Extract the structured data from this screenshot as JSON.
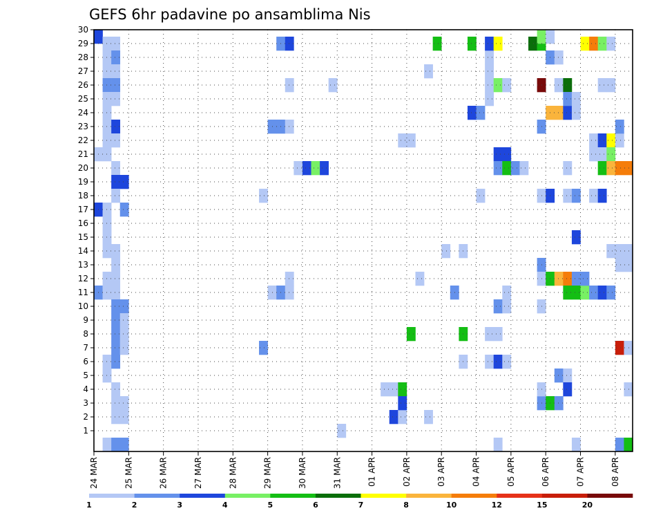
{
  "chart_data": {
    "type": "heatmap",
    "title": "GEFS 6hr padavine po ansamblima Nis",
    "xlabel": "",
    "ylabel": "",
    "y_ticks": [
      "1",
      "2",
      "3",
      "4",
      "5",
      "6",
      "7",
      "8",
      "9",
      "10",
      "11",
      "12",
      "13",
      "14",
      "15",
      "16",
      "17",
      "18",
      "19",
      "20",
      "21",
      "22",
      "23",
      "24",
      "25",
      "26",
      "27",
      "28",
      "29",
      "30"
    ],
    "x_ticks": [
      "24 MAR",
      "25 MAR",
      "26 MAR",
      "27 MAR",
      "28 MAR",
      "29 MAR",
      "30 MAR",
      "31 MAR",
      "01 APR",
      "02 APR",
      "03 APR",
      "04 APR",
      "05 APR",
      "06 APR",
      "07 APR",
      "08 APR"
    ],
    "x_range": [
      0,
      60
    ],
    "y_range": [
      0,
      30
    ],
    "grid": true,
    "legend": {
      "placement": "bottom",
      "labels": [
        "1",
        "2",
        "3",
        "4",
        "5",
        "6",
        "7",
        "8",
        "10",
        "12",
        "15",
        "20"
      ],
      "colors": [
        "#b4c8f5",
        "#6491eb",
        "#1e46dc",
        "#78f064",
        "#14be14",
        "#0a6e0a",
        "#ffff00",
        "#fab43c",
        "#f57d0a",
        "#e63219",
        "#c81e0a",
        "#780a0a"
      ]
    },
    "cells": [
      [
        0,
        30,
        2
      ],
      [
        1,
        29,
        0
      ],
      [
        2,
        29,
        0
      ],
      [
        1,
        28,
        0
      ],
      [
        2,
        28,
        1
      ],
      [
        1,
        27,
        0
      ],
      [
        2,
        27,
        0
      ],
      [
        1,
        26,
        1
      ],
      [
        2,
        26,
        1
      ],
      [
        1,
        25,
        0
      ],
      [
        2,
        25,
        0
      ],
      [
        1,
        24,
        0
      ],
      [
        1,
        23,
        0
      ],
      [
        2,
        23,
        2
      ],
      [
        1,
        22,
        0
      ],
      [
        2,
        22,
        0
      ],
      [
        0,
        21,
        0
      ],
      [
        1,
        21,
        0
      ],
      [
        2,
        20,
        0
      ],
      [
        2,
        19,
        2
      ],
      [
        3,
        19,
        2
      ],
      [
        2,
        18,
        0
      ],
      [
        0,
        17,
        2
      ],
      [
        1,
        17,
        0
      ],
      [
        3,
        17,
        1
      ],
      [
        1,
        16,
        0
      ],
      [
        1,
        15,
        0
      ],
      [
        1,
        14,
        0
      ],
      [
        2,
        14,
        0
      ],
      [
        2,
        13,
        0
      ],
      [
        1,
        12,
        0
      ],
      [
        2,
        12,
        0
      ],
      [
        0,
        11,
        1
      ],
      [
        1,
        11,
        0
      ],
      [
        2,
        11,
        0
      ],
      [
        2,
        10,
        1
      ],
      [
        3,
        10,
        1
      ],
      [
        2,
        9,
        1
      ],
      [
        3,
        9,
        0
      ],
      [
        2,
        8,
        1
      ],
      [
        3,
        8,
        0
      ],
      [
        2,
        7,
        1
      ],
      [
        3,
        7,
        0
      ],
      [
        1,
        6,
        0
      ],
      [
        2,
        6,
        1
      ],
      [
        1,
        5,
        0
      ],
      [
        2,
        4,
        0
      ],
      [
        2,
        3,
        0
      ],
      [
        3,
        3,
        0
      ],
      [
        2,
        2,
        0
      ],
      [
        3,
        2,
        0
      ],
      [
        1,
        0,
        0
      ],
      [
        2,
        0,
        1
      ],
      [
        3,
        0,
        1
      ],
      [
        21,
        29,
        1
      ],
      [
        22,
        29,
        2
      ],
      [
        20,
        23,
        1
      ],
      [
        21,
        23,
        1
      ],
      [
        22,
        23,
        0
      ],
      [
        19,
        18,
        0
      ],
      [
        19,
        7,
        1
      ],
      [
        20,
        11,
        0
      ],
      [
        21,
        11,
        1
      ],
      [
        22,
        11,
        0
      ],
      [
        22,
        12,
        0
      ],
      [
        22,
        26,
        0
      ],
      [
        23,
        20,
        0
      ],
      [
        24,
        20,
        2
      ],
      [
        25,
        20,
        3
      ],
      [
        26,
        20,
        2
      ],
      [
        27,
        26,
        0
      ],
      [
        28,
        1,
        0
      ],
      [
        33,
        4,
        0
      ],
      [
        34,
        4,
        0
      ],
      [
        35,
        4,
        4
      ],
      [
        34,
        2,
        2
      ],
      [
        35,
        2,
        0
      ],
      [
        35,
        3,
        2
      ],
      [
        36,
        8,
        4
      ],
      [
        37,
        12,
        0
      ],
      [
        38,
        2,
        0
      ],
      [
        38,
        27,
        0
      ],
      [
        39,
        29,
        4
      ],
      [
        35,
        22,
        0
      ],
      [
        36,
        22,
        0
      ],
      [
        40,
        14,
        0
      ],
      [
        42,
        14,
        0
      ],
      [
        41,
        11,
        1
      ],
      [
        42,
        6,
        0
      ],
      [
        42,
        8,
        4
      ],
      [
        43,
        24,
        2
      ],
      [
        44,
        24,
        1
      ],
      [
        43,
        29,
        4
      ],
      [
        44,
        18,
        0
      ],
      [
        45,
        25,
        0
      ],
      [
        45,
        27,
        0
      ],
      [
        45,
        28,
        0
      ],
      [
        45,
        29,
        2
      ],
      [
        46,
        29,
        6
      ],
      [
        45,
        26,
        0
      ],
      [
        46,
        26,
        3
      ],
      [
        47,
        26,
        0
      ],
      [
        45,
        8,
        0
      ],
      [
        46,
        8,
        0
      ],
      [
        45,
        6,
        0
      ],
      [
        46,
        6,
        2
      ],
      [
        47,
        6,
        0
      ],
      [
        46,
        21,
        2
      ],
      [
        47,
        21,
        2
      ],
      [
        46,
        20,
        1
      ],
      [
        47,
        20,
        4
      ],
      [
        48,
        20,
        1
      ],
      [
        49,
        20,
        0
      ],
      [
        46,
        10,
        1
      ],
      [
        47,
        10,
        0
      ],
      [
        47,
        11,
        0
      ],
      [
        46,
        0,
        0
      ],
      [
        50,
        29,
        5
      ],
      [
        51,
        29,
        4
      ],
      [
        51,
        30,
        3
      ],
      [
        52,
        30,
        0
      ],
      [
        51,
        26,
        11
      ],
      [
        52,
        28,
        1
      ],
      [
        53,
        28,
        0
      ],
      [
        51,
        23,
        1
      ],
      [
        51,
        18,
        0
      ],
      [
        52,
        18,
        2
      ],
      [
        54,
        18,
        0
      ],
      [
        55,
        18,
        1
      ],
      [
        57,
        18,
        0
      ],
      [
        58,
        18,
        2
      ],
      [
        51,
        13,
        1
      ],
      [
        51,
        12,
        0
      ],
      [
        52,
        12,
        4
      ],
      [
        53,
        12,
        7
      ],
      [
        54,
        12,
        8
      ],
      [
        55,
        12,
        1
      ],
      [
        51,
        10,
        0
      ],
      [
        51,
        3,
        1
      ],
      [
        52,
        3,
        4
      ],
      [
        53,
        3,
        1
      ],
      [
        53,
        5,
        1
      ],
      [
        54,
        5,
        0
      ],
      [
        54,
        4,
        2
      ],
      [
        51,
        4,
        0
      ],
      [
        52,
        24,
        7
      ],
      [
        53,
        24,
        7
      ],
      [
        54,
        24,
        2
      ],
      [
        55,
        24,
        0
      ],
      [
        53,
        26,
        0
      ],
      [
        54,
        26,
        5
      ],
      [
        54,
        25,
        1
      ],
      [
        55,
        25,
        0
      ],
      [
        55,
        15,
        2
      ],
      [
        54,
        20,
        0
      ],
      [
        55,
        0,
        0
      ],
      [
        54,
        11,
        4
      ],
      [
        55,
        11,
        4
      ],
      [
        56,
        11,
        3
      ],
      [
        57,
        11,
        1
      ],
      [
        58,
        11,
        2
      ],
      [
        59,
        11,
        1
      ],
      [
        56,
        12,
        1
      ],
      [
        56,
        29,
        6
      ],
      [
        57,
        29,
        8
      ],
      [
        58,
        29,
        3
      ],
      [
        59,
        29,
        0
      ],
      [
        57,
        22,
        0
      ],
      [
        58,
        22,
        2
      ],
      [
        59,
        22,
        6
      ],
      [
        60,
        22,
        0
      ],
      [
        57,
        21,
        0
      ],
      [
        58,
        21,
        0
      ],
      [
        59,
        21,
        3
      ],
      [
        58,
        20,
        4
      ],
      [
        59,
        20,
        7
      ],
      [
        60,
        20,
        8
      ],
      [
        61,
        20,
        8
      ],
      [
        60,
        23,
        1
      ],
      [
        58,
        26,
        0
      ],
      [
        59,
        26,
        0
      ],
      [
        60,
        13,
        0
      ],
      [
        61,
        13,
        0
      ],
      [
        59,
        14,
        0
      ],
      [
        60,
        14,
        0
      ],
      [
        61,
        14,
        0
      ],
      [
        60,
        7,
        10
      ],
      [
        61,
        7,
        0
      ],
      [
        61,
        4,
        0
      ],
      [
        60,
        0,
        1
      ],
      [
        61,
        0,
        4
      ]
    ]
  }
}
